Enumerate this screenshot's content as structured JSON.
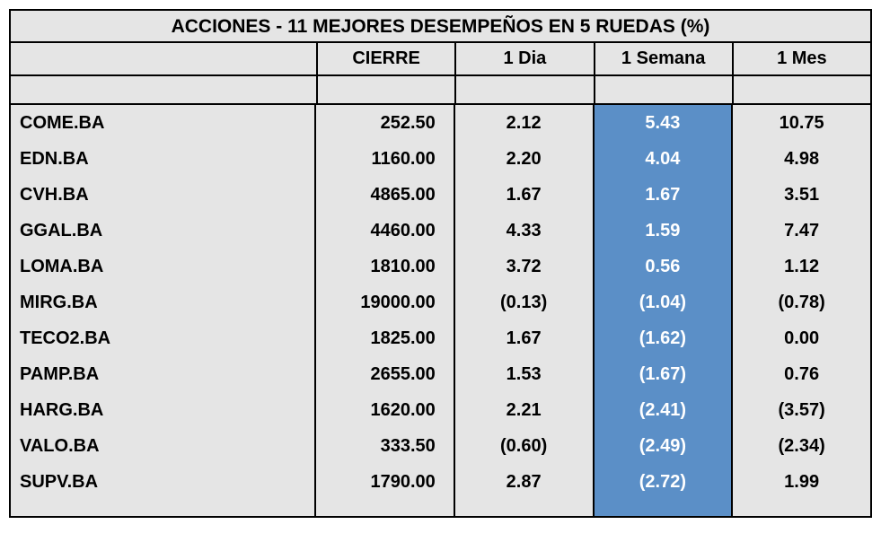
{
  "type": "table",
  "title": "ACCIONES   - 11  MEJORES DESEMPEÑOS EN 5 RUEDAS (%)",
  "columns": [
    "CIERRE",
    "1 Dia",
    "1 Semana",
    "1 Mes"
  ],
  "highlight_column_index": 2,
  "colors": {
    "background": "#e5e5e5",
    "border": "#000000",
    "highlight_bg": "#5b8fc7",
    "highlight_text": "#ffffff",
    "text": "#000000"
  },
  "font": {
    "family": "Arial",
    "title_size_pt": 16,
    "header_size_pt": 15,
    "cell_size_pt": 15,
    "weight": "bold"
  },
  "column_alignment": [
    "left",
    "right",
    "center",
    "center",
    "center"
  ],
  "rows": [
    {
      "ticker": "COME.BA",
      "cierre": "252.50",
      "d1": "2.12",
      "s1": "5.43",
      "m1": "10.75"
    },
    {
      "ticker": "EDN.BA",
      "cierre": "1160.00",
      "d1": "2.20",
      "s1": "4.04",
      "m1": "4.98"
    },
    {
      "ticker": "CVH.BA",
      "cierre": "4865.00",
      "d1": "1.67",
      "s1": "1.67",
      "m1": "3.51"
    },
    {
      "ticker": "GGAL.BA",
      "cierre": "4460.00",
      "d1": "4.33",
      "s1": "1.59",
      "m1": "7.47"
    },
    {
      "ticker": "LOMA.BA",
      "cierre": "1810.00",
      "d1": "3.72",
      "s1": "0.56",
      "m1": "1.12"
    },
    {
      "ticker": "MIRG.BA",
      "cierre": "19000.00",
      "d1": "(0.13)",
      "s1": "(1.04)",
      "m1": "(0.78)"
    },
    {
      "ticker": "TECO2.BA",
      "cierre": "1825.00",
      "d1": "1.67",
      "s1": "(1.62)",
      "m1": "0.00"
    },
    {
      "ticker": "PAMP.BA",
      "cierre": "2655.00",
      "d1": "1.53",
      "s1": "(1.67)",
      "m1": "0.76"
    },
    {
      "ticker": "HARG.BA",
      "cierre": "1620.00",
      "d1": "2.21",
      "s1": "(2.41)",
      "m1": "(3.57)"
    },
    {
      "ticker": "VALO.BA",
      "cierre": "333.50",
      "d1": "(0.60)",
      "s1": "(2.49)",
      "m1": "(2.34)"
    },
    {
      "ticker": "SUPV.BA",
      "cierre": "1790.00",
      "d1": "2.87",
      "s1": "(2.72)",
      "m1": "1.99"
    }
  ]
}
